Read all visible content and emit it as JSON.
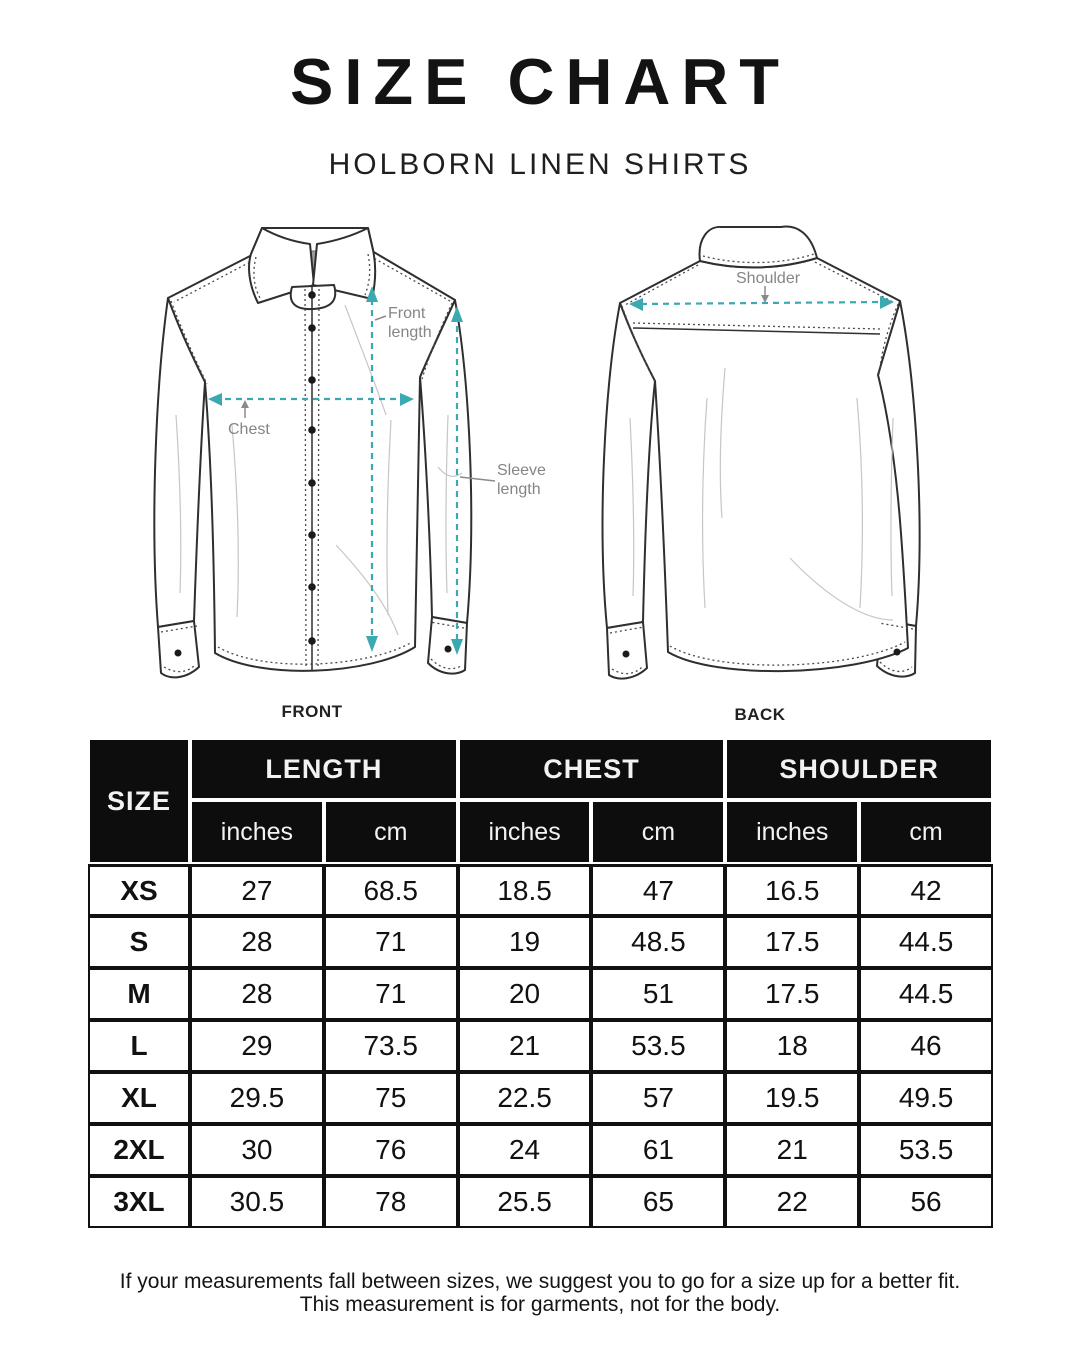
{
  "page": {
    "title": "SIZE CHART",
    "subtitle": "HOLBORN LINEN SHIRTS",
    "footer_line1": "If your measurements fall between sizes, we suggest you to go for a size up for a better fit.",
    "footer_line2": "This measurement is for garments, not for the body."
  },
  "colors": {
    "arrow_teal": "#3aa9b2",
    "annotation_gray": "#858585",
    "header_bg": "#0d0d0d",
    "header_text": "#f2f2f2",
    "body_border": "#111111"
  },
  "diagram": {
    "front_caption": "FRONT",
    "back_caption": "BACK",
    "labels": {
      "front_length": "Front\nlength",
      "chest": "Chest",
      "sleeve_length": "Sleeve\nlength",
      "shoulder": "Shoulder"
    }
  },
  "table": {
    "size_header": "SIZE",
    "groups": [
      {
        "label": "LENGTH"
      },
      {
        "label": "CHEST"
      },
      {
        "label": "SHOULDER"
      }
    ],
    "unit_headers": [
      "inches",
      "cm",
      "inches",
      "cm",
      "inches",
      "cm"
    ],
    "rows": [
      {
        "size": "XS",
        "values": [
          "27",
          "68.5",
          "18.5",
          "47",
          "16.5",
          "42"
        ]
      },
      {
        "size": "S",
        "values": [
          "28",
          "71",
          "19",
          "48.5",
          "17.5",
          "44.5"
        ]
      },
      {
        "size": "M",
        "values": [
          "28",
          "71",
          "20",
          "51",
          "17.5",
          "44.5"
        ]
      },
      {
        "size": "L",
        "values": [
          "29",
          "73.5",
          "21",
          "53.5",
          "18",
          "46"
        ]
      },
      {
        "size": "XL",
        "values": [
          "29.5",
          "75",
          "22.5",
          "57",
          "19.5",
          "49.5"
        ]
      },
      {
        "size": "2XL",
        "values": [
          "30",
          "76",
          "24",
          "61",
          "21",
          "53.5"
        ]
      },
      {
        "size": "3XL",
        "values": [
          "30.5",
          "78",
          "25.5",
          "65",
          "22",
          "56"
        ]
      }
    ]
  }
}
